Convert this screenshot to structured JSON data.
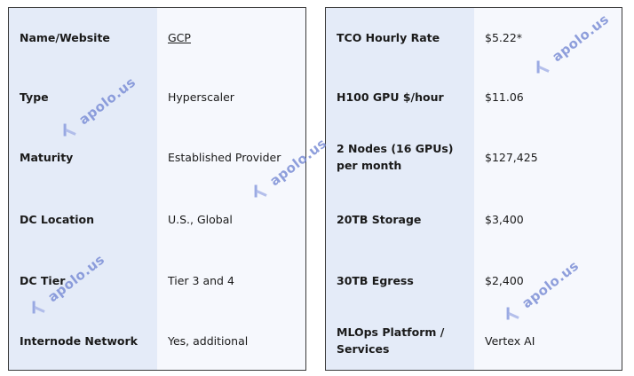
{
  "left_table": [
    {
      "label": "Name/Website",
      "value": "GCP"
    },
    {
      "label": "Type",
      "value": "Hyperscaler"
    },
    {
      "label": "Maturity",
      "value": "Established Provider"
    },
    {
      "label": "DC Location",
      "value": "U.S., Global"
    },
    {
      "label": "DC Tier",
      "value": "Tier 3 and 4"
    },
    {
      "label": "Internode Network",
      "value": "Yes, additional"
    }
  ],
  "right_table": [
    {
      "label": "TCO Hourly Rate",
      "value": "$5.22*"
    },
    {
      "label": "H100 GPU $/hour",
      "value": "$11.06"
    },
    {
      "label": "2 Nodes (16 GPUs) per month",
      "value": "$127,425"
    },
    {
      "label": "20TB Storage",
      "value": "$3,400"
    },
    {
      "label": "30TB Egress",
      "value": "$2,400"
    },
    {
      "label": "MLOps Platform / Services",
      "value": "Vertex AI"
    }
  ],
  "watermark": {
    "text": "apolo.us",
    "icon": "apolo-logo-icon"
  },
  "colors": {
    "label_bg": "#e4ebf8",
    "value_bg": "#f6f8fd",
    "watermark": "#7c8fd6",
    "border": "#3a3a3a"
  }
}
